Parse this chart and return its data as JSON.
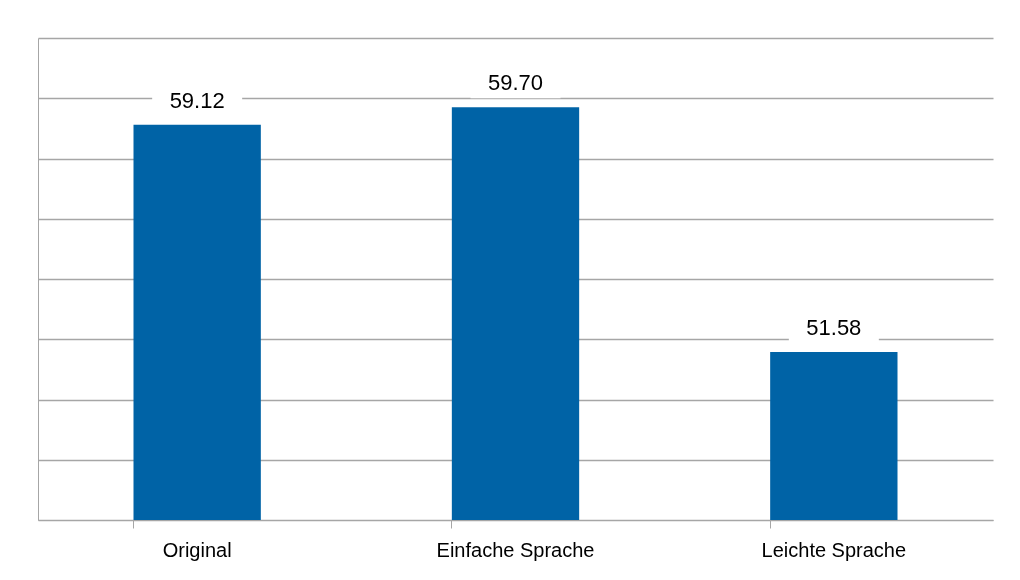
{
  "chart_data": {
    "type": "bar",
    "categories": [
      "Original",
      "Einfache Sprache",
      "Leichte Sprache"
    ],
    "values": [
      59.12,
      59.7,
      51.58
    ],
    "color": "#0063a6",
    "value_labels": [
      "59.12",
      "59.70",
      "51.58"
    ],
    "ylim": [
      46,
      62
    ],
    "yticks": [
      {
        "value": 46,
        "label": null
      },
      {
        "value": 48,
        "label": null
      },
      {
        "value": 50,
        "label": null
      },
      {
        "value": 52,
        "label": null
      },
      {
        "value": 54,
        "label": null
      },
      {
        "value": 56,
        "label": null
      },
      {
        "value": 58,
        "label": null
      },
      {
        "value": 60,
        "label": null
      },
      {
        "value": 62,
        "label": null
      }
    ],
    "grid": "y",
    "tick_labels": "x"
  }
}
